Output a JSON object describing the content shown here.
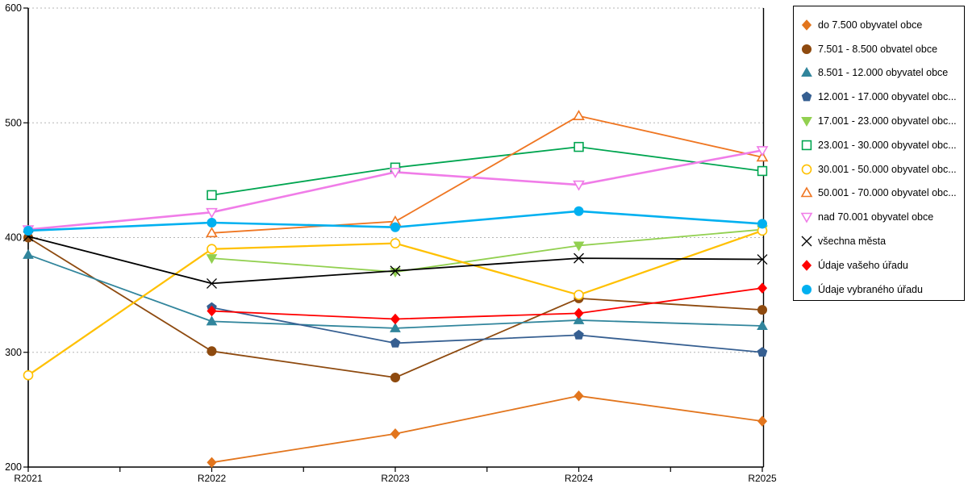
{
  "chart_data": {
    "type": "line",
    "title": "",
    "x_labels": [
      "R2021",
      "R2022",
      "R2023",
      "R2024",
      "R2025"
    ],
    "ylim": [
      200,
      600
    ],
    "yticks": [
      200,
      300,
      400,
      500,
      600
    ],
    "grid": "horizontal-dashed",
    "legend_position": "outside-top-right",
    "series": [
      {
        "name": "do 7.500 obyvatel obce",
        "marker": "diamond",
        "style": "filled",
        "color": "#E2751D",
        "width": 1.8,
        "values": [
          null,
          204,
          229,
          262,
          240
        ]
      },
      {
        "name": "7.501 - 8.500 obvatel obce",
        "marker": "circle",
        "style": "filled",
        "color": "#8E4A0F",
        "width": 1.8,
        "values": [
          400,
          301,
          278,
          347,
          337
        ]
      },
      {
        "name": "8.501 - 12.000 obyvatel obce",
        "marker": "triangle-up",
        "style": "filled",
        "color": "#31859C",
        "width": 1.8,
        "values": [
          385,
          327,
          321,
          328,
          323
        ]
      },
      {
        "name": "12.001 - 17.000 obyvatel obc...",
        "marker": "pentagon",
        "style": "filled",
        "color": "#365F91",
        "width": 1.8,
        "values": [
          null,
          339,
          308,
          315,
          300
        ]
      },
      {
        "name": "17.001 - 23.000 obyvatel obc...",
        "marker": "triangle-down",
        "style": "filled",
        "color": "#92D050",
        "width": 1.8,
        "values": [
          null,
          382,
          370,
          393,
          407
        ]
      },
      {
        "name": "23.001 - 30.000 obyvatel obc...",
        "marker": "square",
        "style": "open",
        "color": "#00A550",
        "width": 1.8,
        "values": [
          null,
          437,
          461,
          479,
          458
        ]
      },
      {
        "name": "30.001 - 50.000 obyvatel obc...",
        "marker": "circle",
        "style": "open",
        "color": "#FFC000",
        "width": 2.2,
        "values": [
          280,
          390,
          395,
          350,
          406
        ]
      },
      {
        "name": "50.001 - 70.000 obyvatel obc...",
        "marker": "triangle-up",
        "style": "open",
        "color": "#EF7622",
        "width": 1.8,
        "values": [
          null,
          404,
          414,
          506,
          470
        ]
      },
      {
        "name": "nad 70.001 obyvatel obce",
        "marker": "triangle-down",
        "style": "open",
        "color": "#F07CE8",
        "width": 2.6,
        "values": [
          407,
          422,
          457,
          446,
          476
        ]
      },
      {
        "name": "všechna města",
        "marker": "x",
        "style": "stroke",
        "color": "#000000",
        "width": 1.8,
        "values": [
          401,
          360,
          371,
          382,
          381
        ]
      },
      {
        "name": "Údaje vašeho úřadu",
        "marker": "diamond",
        "style": "filled",
        "color": "#FF0000",
        "width": 1.8,
        "values": [
          null,
          336,
          329,
          334,
          356
        ]
      },
      {
        "name": "Údaje vybraného úřadu",
        "marker": "circle",
        "style": "filled",
        "color": "#00B0F0",
        "width": 2.6,
        "values": [
          406,
          413,
          409,
          423,
          412
        ]
      }
    ]
  },
  "colors": {
    "background": "#ffffff",
    "axis": "#000000",
    "grid": "#b5b5b5",
    "legend_border": "#000000",
    "tick_label": "#000000"
  }
}
